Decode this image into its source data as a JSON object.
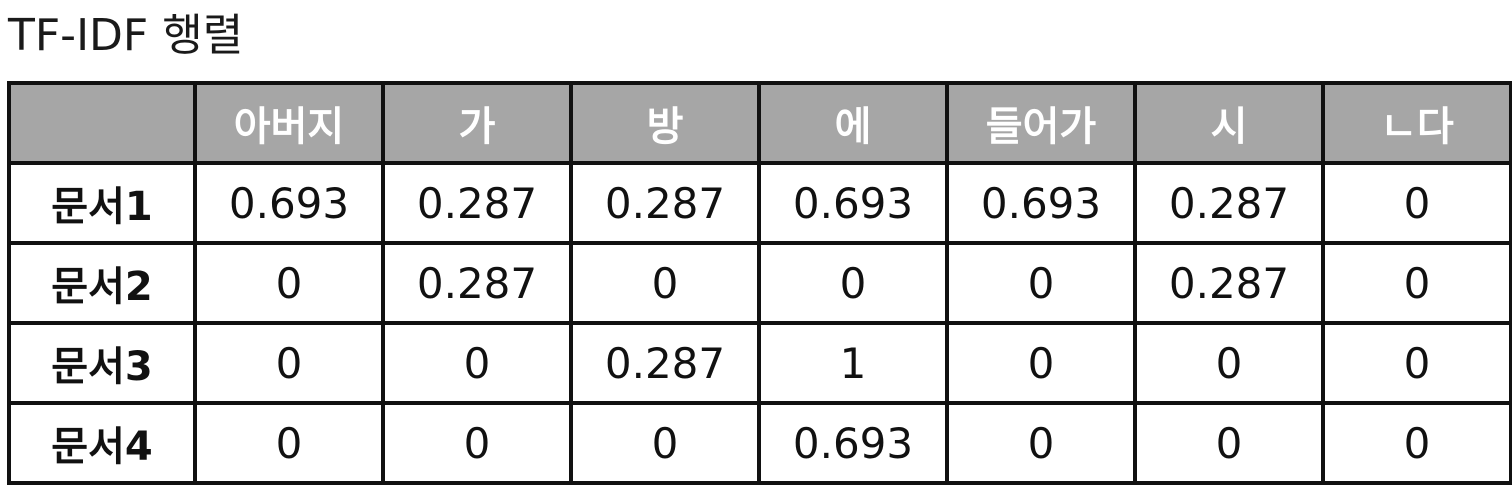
{
  "title": "TF-IDF 행렬",
  "table": {
    "corner": "",
    "columns": [
      "아버지",
      "가",
      "방",
      "에",
      "들어가",
      "시",
      "ㄴ다"
    ],
    "rows": [
      {
        "label": "문서1",
        "values": [
          "0.693",
          "0.287",
          "0.287",
          "0.693",
          "0.693",
          "0.287",
          "0"
        ]
      },
      {
        "label": "문서2",
        "values": [
          "0",
          "0.287",
          "0",
          "0",
          "0",
          "0.287",
          "0"
        ]
      },
      {
        "label": "문서3",
        "values": [
          "0",
          "0",
          "0.287",
          "1",
          "0",
          "0",
          "0"
        ]
      },
      {
        "label": "문서4",
        "values": [
          "0",
          "0",
          "0",
          "0.693",
          "0",
          "0",
          "0"
        ]
      }
    ]
  },
  "colors": {
    "header_bg": "#a6a6a6",
    "header_text": "#ffffff",
    "border": "#111111",
    "text": "#111111"
  }
}
